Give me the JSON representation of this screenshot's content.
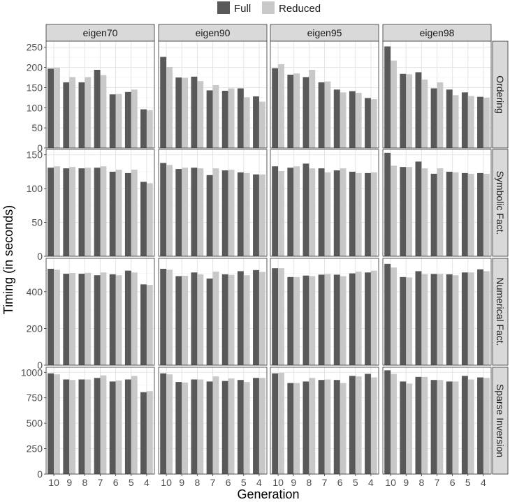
{
  "chart_data": {
    "type": "bar",
    "xlabel": "Generation",
    "ylabel": "Timing (in seconds)",
    "legend": {
      "placement": "top",
      "entries": [
        {
          "name": "Full",
          "color": "#595959"
        },
        {
          "name": "Reduced",
          "color": "#c8c8c8"
        }
      ]
    },
    "categories": [
      "10",
      "9",
      "8",
      "7",
      "6",
      "5",
      "4"
    ],
    "facet_columns": [
      "eigen70",
      "eigen90",
      "eigen95",
      "eigen98"
    ],
    "facet_rows": [
      {
        "name": "Ordering",
        "ylim": [
          0,
          265
        ],
        "ticks": [
          0,
          50,
          100,
          150,
          200,
          250
        ]
      },
      {
        "name": "Symbolic Fact.",
        "ylim": [
          0,
          158
        ],
        "ticks": [
          0,
          50,
          100,
          150
        ]
      },
      {
        "name": "Numerical Fact.",
        "ylim": [
          0,
          582
        ],
        "ticks": [
          0,
          200,
          400
        ]
      },
      {
        "name": "Sparse Inversion",
        "ylim": [
          0,
          1050
        ],
        "ticks": [
          0,
          250,
          500,
          750,
          1000
        ]
      }
    ],
    "grid": true,
    "panels": {
      "Ordering": {
        "eigen70": {
          "Full": [
            197,
            163,
            163,
            194,
            133,
            139,
            96
          ],
          "Reduced": [
            199,
            176,
            176,
            181,
            134,
            145,
            94
          ]
        },
        "eigen90": {
          "Full": [
            226,
            175,
            177,
            143,
            142,
            148,
            128
          ],
          "Reduced": [
            201,
            174,
            166,
            156,
            148,
            126,
            115
          ]
        },
        "eigen95": {
          "Full": [
            198,
            182,
            176,
            163,
            145,
            141,
            124
          ],
          "Reduced": [
            208,
            185,
            194,
            165,
            138,
            137,
            121
          ]
        },
        "eigen98": {
          "Full": [
            252,
            184,
            188,
            148,
            145,
            138,
            127
          ],
          "Reduced": [
            217,
            183,
            170,
            163,
            131,
            129,
            125
          ]
        }
      },
      "Symbolic Fact.": {
        "eigen70": {
          "Full": [
            131,
            130,
            130,
            131,
            125,
            123,
            110
          ],
          "Reduced": [
            133,
            132,
            131,
            133,
            128,
            128,
            108
          ]
        },
        "eigen90": {
          "Full": [
            138,
            129,
            131,
            120,
            127,
            124,
            121
          ],
          "Reduced": [
            135,
            131,
            130,
            130,
            128,
            123,
            121
          ]
        },
        "eigen95": {
          "Full": [
            133,
            131,
            137,
            130,
            127,
            125,
            123
          ],
          "Reduced": [
            126,
            133,
            130,
            124,
            130,
            123,
            124
          ]
        },
        "eigen98": {
          "Full": [
            153,
            132,
            140,
            122,
            125,
            123,
            123
          ],
          "Reduced": [
            134,
            132,
            130,
            130,
            124,
            122,
            122
          ]
        }
      },
      "Numerical Fact.": {
        "eigen70": {
          "Full": [
            525,
            498,
            498,
            490,
            495,
            515,
            440
          ],
          "Reduced": [
            520,
            502,
            503,
            505,
            490,
            505,
            437
          ]
        },
        "eigen90": {
          "Full": [
            525,
            485,
            505,
            472,
            495,
            512,
            518
          ],
          "Reduced": [
            520,
            487,
            495,
            510,
            492,
            490,
            508
          ]
        },
        "eigen95": {
          "Full": [
            528,
            480,
            488,
            493,
            493,
            500,
            505
          ],
          "Reduced": [
            528,
            480,
            485,
            497,
            485,
            510,
            515
          ]
        },
        "eigen98": {
          "Full": [
            552,
            480,
            512,
            497,
            495,
            505,
            522
          ],
          "Reduced": [
            532,
            478,
            496,
            497,
            490,
            505,
            512
          ]
        }
      },
      "Sparse Inversion": {
        "eigen70": {
          "Full": [
            990,
            930,
            930,
            945,
            910,
            930,
            805
          ],
          "Reduced": [
            980,
            925,
            930,
            970,
            920,
            965,
            815
          ]
        },
        "eigen90": {
          "Full": [
            990,
            905,
            930,
            910,
            915,
            925,
            945
          ],
          "Reduced": [
            980,
            900,
            930,
            960,
            940,
            905,
            945
          ]
        },
        "eigen95": {
          "Full": [
            990,
            895,
            910,
            925,
            925,
            965,
            985
          ],
          "Reduced": [
            995,
            895,
            945,
            930,
            895,
            960,
            950
          ]
        },
        "eigen98": {
          "Full": [
            1020,
            910,
            955,
            925,
            910,
            965,
            950
          ],
          "Reduced": [
            985,
            890,
            955,
            925,
            910,
            930,
            945
          ]
        }
      }
    }
  }
}
